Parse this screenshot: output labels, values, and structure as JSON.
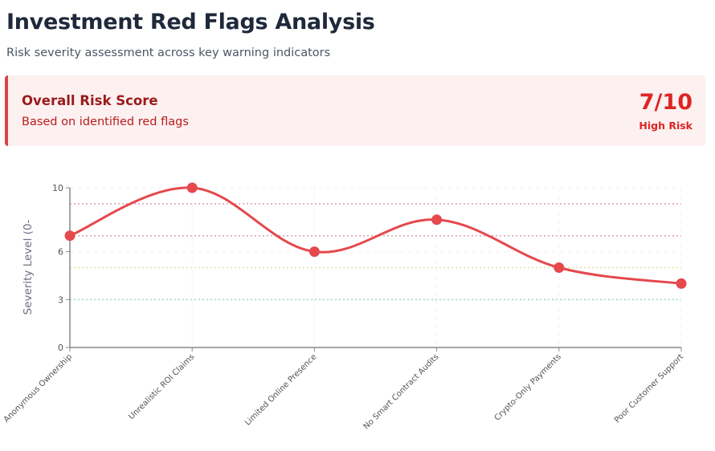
{
  "header": {
    "title": "Investment Red Flags Analysis",
    "subtitle": "Risk severity assessment across key warning indicators"
  },
  "risk_card": {
    "label": "Overall Risk Score",
    "description": "Based on identified red flags",
    "score": "7/10",
    "level": "High Risk",
    "accent_color": "#dc2626",
    "background_color": "#fdf0f0"
  },
  "chart_data": {
    "type": "line",
    "title": "",
    "xlabel": "",
    "ylabel": "Severity Level (0-",
    "ylim": [
      0,
      10
    ],
    "yticks": [
      0,
      3,
      6,
      10
    ],
    "grid": true,
    "legend": null,
    "categories": [
      "Anonymous Ownership",
      "Unrealistic ROI Claims",
      "Limited Online Presence",
      "No Smart Contract Audits",
      "Crypto-Only Payments",
      "Poor Customer Support"
    ],
    "series": [
      {
        "name": "Severity",
        "color": "#e5484d",
        "values": [
          7,
          10,
          6,
          8,
          5,
          4
        ]
      }
    ],
    "reference_lines": [
      {
        "y": 9,
        "color": "#d9a0b0",
        "style": "dotted"
      },
      {
        "y": 7,
        "color": "#d9a0b0",
        "style": "dotted"
      },
      {
        "y": 5,
        "color": "#e6dca0",
        "style": "dotted"
      },
      {
        "y": 3,
        "color": "#a0d8c8",
        "style": "dotted"
      }
    ]
  }
}
